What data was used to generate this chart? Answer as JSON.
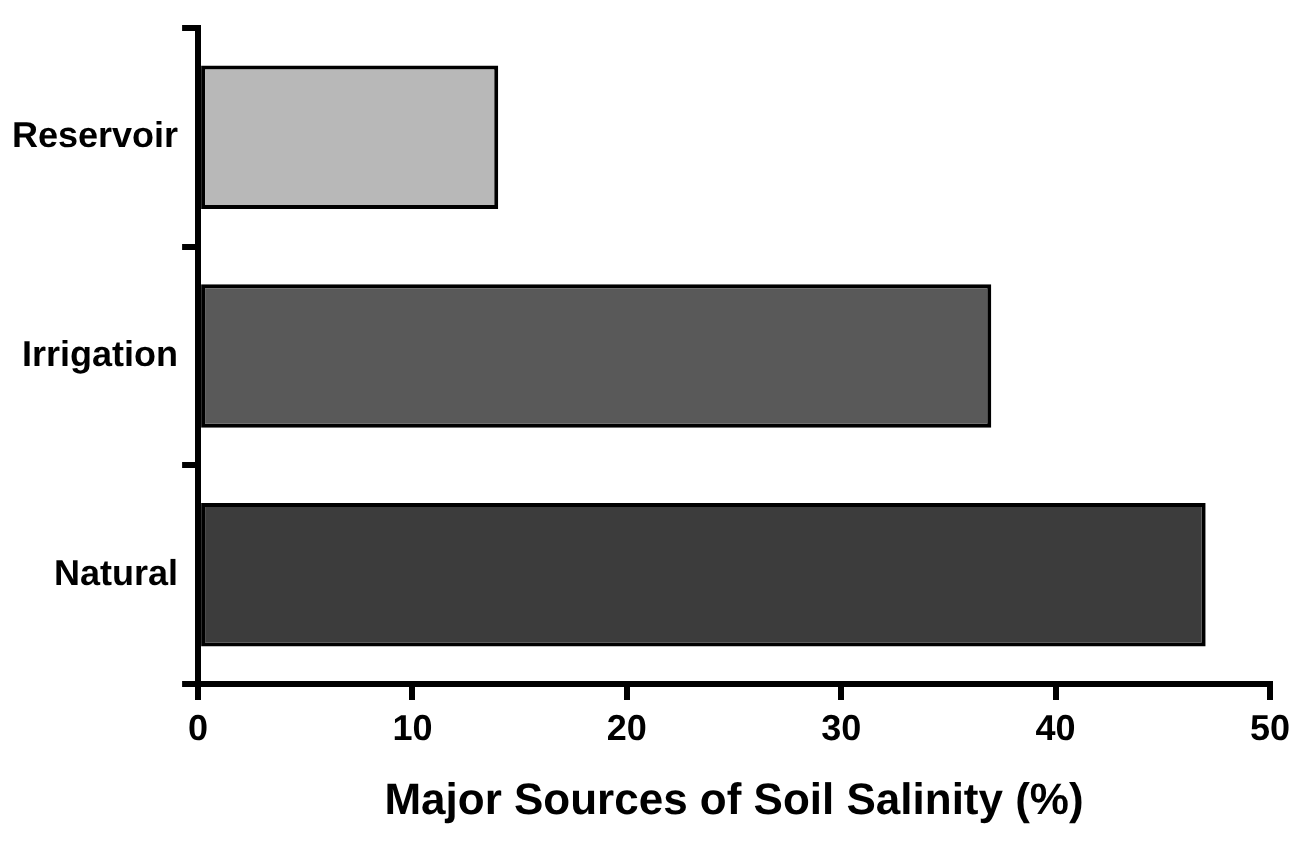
{
  "chart_data": {
    "type": "bar",
    "orientation": "horizontal",
    "xlabel": "Major Sources of Soil Salinity (%)",
    "categories": [
      "Reservoir",
      "Irrigation",
      "Natural"
    ],
    "values": [
      14,
      37,
      47
    ],
    "colors": [
      "#b8b8b8",
      "#595959",
      "#3c3c3c"
    ],
    "xlim": [
      0,
      50
    ],
    "xticks": [
      0,
      10,
      20,
      30,
      40,
      50
    ],
    "grid": false,
    "legend": false
  }
}
